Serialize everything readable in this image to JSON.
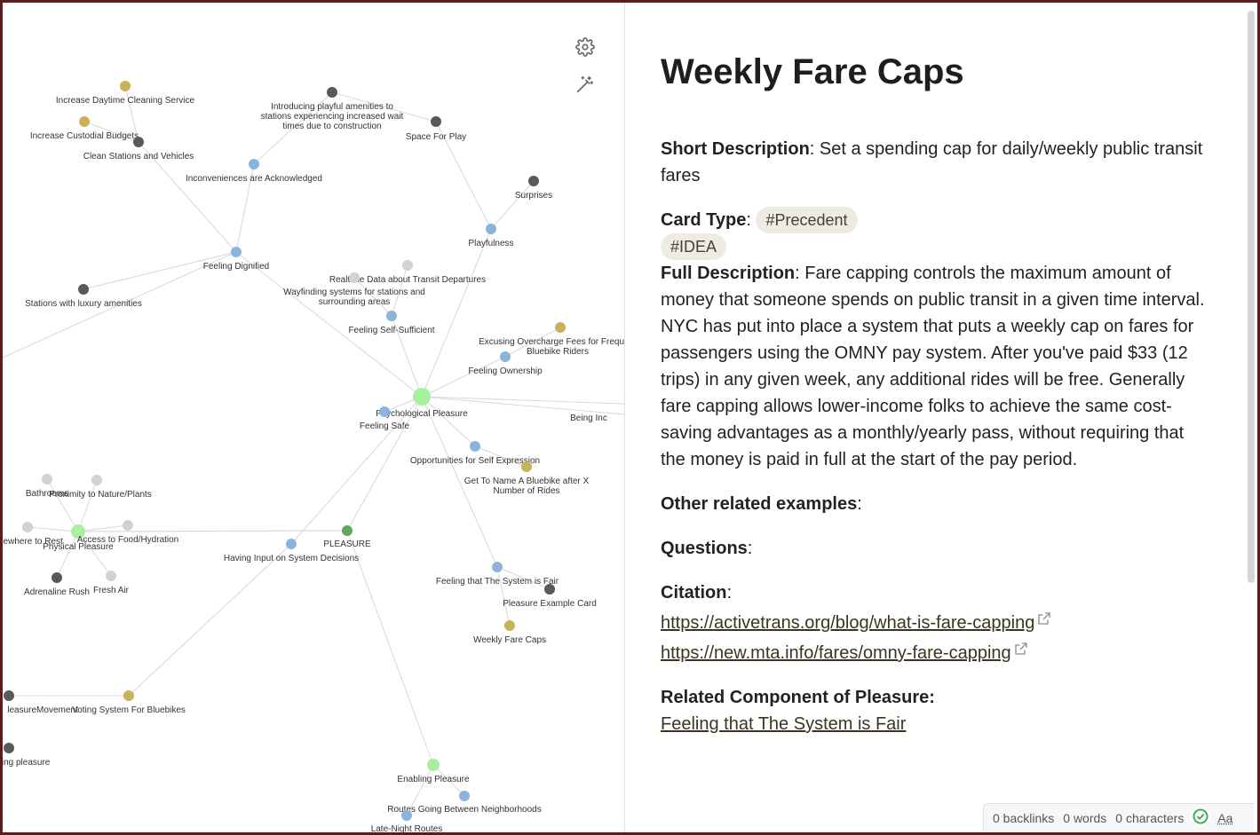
{
  "graph": {
    "controls": {
      "settings_icon": "gear-icon",
      "magic_icon": "magic-wand-icon"
    },
    "colors": {
      "tag": "#c8b35a",
      "dark": "#595959",
      "blue": "#8cb3dc",
      "gray": "#d2d2d2",
      "green_big": "#a8f0a0",
      "green_mid": "#5fa85f",
      "edge": "#d8d8d8"
    },
    "nodes": [
      {
        "id": "n_icl",
        "label": "Increase Daytime Cleaning Service",
        "type": "tag"
      },
      {
        "id": "n_icb",
        "label": "Increase Custodial Budgets",
        "type": "tag"
      },
      {
        "id": "n_csv",
        "label": "Clean Stations and Vehicles",
        "type": "dark"
      },
      {
        "id": "n_ipa",
        "label": "Introducing playful amenities to stations experiencing increased wait times due to construction",
        "type": "dark"
      },
      {
        "id": "n_sfp",
        "label": "Space For Play",
        "type": "dark"
      },
      {
        "id": "n_iaa",
        "label": "Inconveniences are Acknowledged",
        "type": "blue"
      },
      {
        "id": "n_sur",
        "label": "Surprises",
        "type": "dark"
      },
      {
        "id": "n_pla",
        "label": "Playfulness",
        "type": "blue"
      },
      {
        "id": "n_fd",
        "label": "Feeling Dignified",
        "type": "blue"
      },
      {
        "id": "n_rtd",
        "label": "Realtime Data about Transit Departures",
        "type": "gray"
      },
      {
        "id": "n_wf",
        "label": "Wayfinding systems for stations and surrounding areas",
        "type": "gray"
      },
      {
        "id": "n_swl",
        "label": "Stations with luxury amenities",
        "type": "dark"
      },
      {
        "id": "n_fss",
        "label": "Feeling Self-Sufficient",
        "type": "blue"
      },
      {
        "id": "n_eoc",
        "label": "Excusing Overcharge Fees for Frequent Bluebike Riders",
        "type": "tag"
      },
      {
        "id": "n_fo",
        "label": "Feeling Ownership",
        "type": "blue"
      },
      {
        "id": "n_pp",
        "label": "Psychological Pleasure",
        "type": "green_big"
      },
      {
        "id": "n_bi",
        "label": "Being Included",
        "type": "blue"
      },
      {
        "id": "n_fs",
        "label": "Feeling Safe",
        "type": "blue"
      },
      {
        "id": "n_ofse",
        "label": "Opportunities for Self Expression",
        "type": "blue"
      },
      {
        "id": "n_gtn",
        "label": "Get To Name A Bluebike after X Number of Rides",
        "type": "tag"
      },
      {
        "id": "n_bath",
        "label": "Bathrooms",
        "type": "gray"
      },
      {
        "id": "n_pnp",
        "label": "Proximity to Nature/Plants",
        "type": "gray"
      },
      {
        "id": "n_swr",
        "label": "Somewhere to Rest",
        "type": "gray"
      },
      {
        "id": "n_phys",
        "label": "Physical Pleasure",
        "type": "green_big"
      },
      {
        "id": "n_afh",
        "label": "Access to Food/Hydration",
        "type": "gray"
      },
      {
        "id": "n_plea",
        "label": "PLEASURE",
        "type": "green_mid"
      },
      {
        "id": "n_hio",
        "label": "Having Input on System Decisions",
        "type": "blue"
      },
      {
        "id": "n_ar",
        "label": "Adrenaline Rush",
        "type": "dark"
      },
      {
        "id": "n_fa",
        "label": "Fresh Air",
        "type": "gray"
      },
      {
        "id": "n_fsf",
        "label": "Feeling that The System is Fair",
        "type": "blue"
      },
      {
        "id": "n_pec",
        "label": "Pleasure Example Card",
        "type": "dark"
      },
      {
        "id": "n_wfc",
        "label": "Weekly Fare Caps",
        "type": "tag"
      },
      {
        "id": "n_plm",
        "label": "PleasureMovement",
        "type": "dark"
      },
      {
        "id": "n_vsb",
        "label": "Voting System For Bluebikes",
        "type": "tag"
      },
      {
        "id": "n_ep1",
        "label": "Enabling pleasure",
        "type": "dark"
      },
      {
        "id": "n_ep",
        "label": "Enabling Pleasure",
        "type": "green_big"
      },
      {
        "id": "n_rgb",
        "label": "Routes Going Between Neighborhoods",
        "type": "blue"
      },
      {
        "id": "n_lnr",
        "label": "Late-Night Routes",
        "type": "blue"
      }
    ],
    "edges": [
      [
        "n_icl",
        "n_csv"
      ],
      [
        "n_icb",
        "n_csv"
      ],
      [
        "n_csv",
        "n_fd"
      ],
      [
        "n_iaa",
        "n_fd"
      ],
      [
        "n_ipa",
        "n_iaa"
      ],
      [
        "n_ipa",
        "n_sfp"
      ],
      [
        "n_sfp",
        "n_pla"
      ],
      [
        "n_sur",
        "n_pla"
      ],
      [
        "n_pla",
        "n_pp"
      ],
      [
        "n_fd",
        "n_pp"
      ],
      [
        "n_swl",
        "n_fd"
      ],
      [
        "n_wf",
        "n_fss"
      ],
      [
        "n_rtd",
        "n_fss"
      ],
      [
        "n_fss",
        "n_pp"
      ],
      [
        "n_eoc",
        "n_fo"
      ],
      [
        "n_fo",
        "n_pp"
      ],
      [
        "n_pp",
        "n_bi"
      ],
      [
        "n_pp",
        "n_fs"
      ],
      [
        "n_pp",
        "n_ofse"
      ],
      [
        "n_ofse",
        "n_gtn"
      ],
      [
        "n_pp",
        "n_fsf"
      ],
      [
        "n_fsf",
        "n_pec"
      ],
      [
        "n_fsf",
        "n_wfc"
      ],
      [
        "n_pp",
        "n_hio"
      ],
      [
        "n_pp",
        "n_plea"
      ],
      [
        "n_plea",
        "n_phys"
      ],
      [
        "n_plea",
        "n_ep"
      ],
      [
        "n_hio",
        "n_vsb"
      ],
      [
        "n_vsb",
        "n_plm"
      ],
      [
        "n_phys",
        "n_bath"
      ],
      [
        "n_phys",
        "n_pnp"
      ],
      [
        "n_phys",
        "n_swr"
      ],
      [
        "n_phys",
        "n_afh"
      ],
      [
        "n_phys",
        "n_ar"
      ],
      [
        "n_phys",
        "n_fa"
      ],
      [
        "n_ep",
        "n_rgb"
      ],
      [
        "n_ep",
        "n_lnr"
      ],
      [
        "n_fd",
        "n_edge_left"
      ]
    ]
  },
  "note": {
    "title": "Weekly Fare Caps",
    "short_desc_label": "Short Description",
    "short_desc": "Set a spending cap for daily/weekly public transit fares",
    "card_type_label": "Card Type",
    "tags": [
      "#Precedent",
      "#IDEA"
    ],
    "full_desc_label": "Full Description",
    "full_desc": "Fare capping controls the maximum amount of money that someone spends on public transit in a given time interval. NYC has put into place a system that puts a weekly cap on fares for passengers using the OMNY pay system. After you've paid $33 (12 trips) in any given week, any additional rides will be free. Generally fare capping allows lower-income folks to achieve the same cost-saving advantages as a monthly/yearly pass, without requiring that the money is paid in full at the start of the pay period.",
    "other_label": "Other related examples",
    "questions_label": "Questions",
    "citation_label": "Citation",
    "citations": [
      "https://activetrans.org/blog/what-is-fare-capping",
      "https://new.mta.info/fares/omny-fare-capping"
    ],
    "related_label": "Related Component of Pleasure:",
    "related_link": "Feeling that The System is Fair"
  },
  "status": {
    "backlinks": "0 backlinks",
    "words": "0 words",
    "characters": "0 characters",
    "font_toggle": "Aa"
  }
}
